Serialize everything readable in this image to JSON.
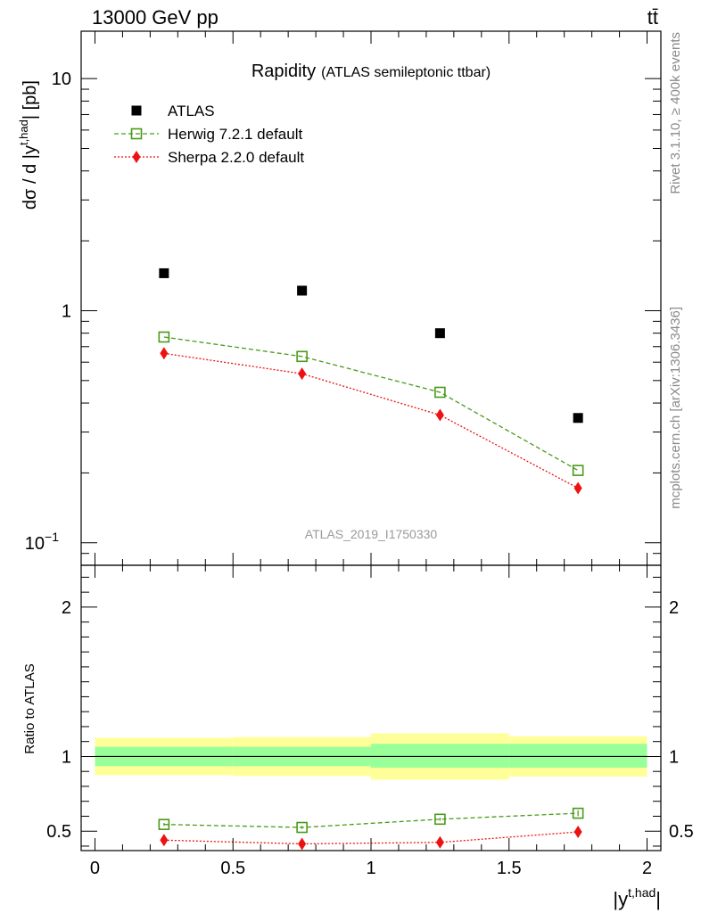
{
  "header": {
    "energy_label": "13000 GeV pp",
    "process_label": "tt̄"
  },
  "side_labels": {
    "rivet": "Rivet 3.1.10, ≥ 400k events",
    "mcplots": "mcplots.cern.ch [arXiv:1306.3436]"
  },
  "chart_data": [
    {
      "type": "scatter",
      "panel": "main",
      "title": "Rapidity",
      "subtitle": "(ATLAS semileptonic ttbar)",
      "ylabel": "dσ / d |y^t,had| [pb]",
      "ylabel_base": "dσ / d |y",
      "ylabel_sup": "t,had",
      "ylabel_tail": "| [pb]",
      "yscale": "log",
      "ylim": [
        0.08,
        16
      ],
      "xlim": [
        -0.05,
        2.05
      ],
      "yticks": [
        {
          "value": 10,
          "label": "10"
        },
        {
          "value": 1,
          "label": "1"
        },
        {
          "value": 0.1,
          "label": "10",
          "sup": "−1"
        }
      ],
      "watermark": "ATLAS_2019_I1750330",
      "legend_position": "top-left",
      "x": [
        0.25,
        0.75,
        1.25,
        1.75
      ],
      "series": [
        {
          "name": "ATLAS",
          "values": [
            1.45,
            1.22,
            0.8,
            0.345
          ],
          "color": "#000000",
          "marker": "square-filled"
        },
        {
          "name": "Herwig 7.2.1 default",
          "values": [
            0.77,
            0.635,
            0.445,
            0.205
          ],
          "color": "#4a9a1a",
          "marker": "square-open",
          "line": "dashed"
        },
        {
          "name": "Sherpa 2.2.0 default",
          "values": [
            0.655,
            0.535,
            0.355,
            0.172
          ],
          "color": "#ee1111",
          "marker": "diamond-filled",
          "line": "dotted"
        }
      ]
    },
    {
      "type": "scatter",
      "panel": "ratio",
      "ylabel": "Ratio to ATLAS",
      "xlabel": "|y^t,had|",
      "xlabel_base": "|y",
      "xlabel_sup": "t,had",
      "xlabel_tail": "|",
      "ylim": [
        0.37,
        2.28
      ],
      "xlim": [
        -0.05,
        2.05
      ],
      "xticks": [
        {
          "value": 0,
          "label": "0"
        },
        {
          "value": 0.5,
          "label": "0.5"
        },
        {
          "value": 1,
          "label": "1"
        },
        {
          "value": 1.5,
          "label": "1.5"
        },
        {
          "value": 2,
          "label": "2"
        }
      ],
      "yticks": [
        {
          "value": 2,
          "label": "2"
        },
        {
          "value": 1,
          "label": "1"
        },
        {
          "value": 0.5,
          "label": "0.5"
        }
      ],
      "bands": [
        {
          "x0": 0.0,
          "x1": 0.5,
          "stat_lo": 0.935,
          "stat_hi": 1.065,
          "tot_lo": 0.875,
          "tot_hi": 1.125
        },
        {
          "x0": 0.5,
          "x1": 1.0,
          "stat_lo": 0.935,
          "stat_hi": 1.065,
          "tot_lo": 0.87,
          "tot_hi": 1.13
        },
        {
          "x0": 1.0,
          "x1": 1.5,
          "stat_lo": 0.925,
          "stat_hi": 1.085,
          "tot_lo": 0.845,
          "tot_hi": 1.155
        },
        {
          "x0": 1.5,
          "x1": 2.0,
          "stat_lo": 0.925,
          "stat_hi": 1.085,
          "tot_lo": 0.865,
          "tot_hi": 1.135
        }
      ],
      "band_colors": {
        "stat": "#99ff99",
        "total": "#ffff99"
      },
      "x": [
        0.25,
        0.75,
        1.25,
        1.75
      ],
      "series": [
        {
          "name": "Herwig 7.2.1 default",
          "values": [
            0.545,
            0.525,
            0.58,
            0.62
          ],
          "errors": [
            0.01,
            0.01,
            0.01,
            0.02
          ],
          "color": "#4a9a1a",
          "marker": "square-open",
          "line": "dashed"
        },
        {
          "name": "Sherpa 2.2.0 default",
          "values": [
            0.44,
            0.415,
            0.425,
            0.495
          ],
          "errors": [
            0.01,
            0.01,
            0.02,
            0.035
          ],
          "color": "#ee1111",
          "marker": "diamond-filled",
          "line": "dotted"
        }
      ]
    }
  ]
}
